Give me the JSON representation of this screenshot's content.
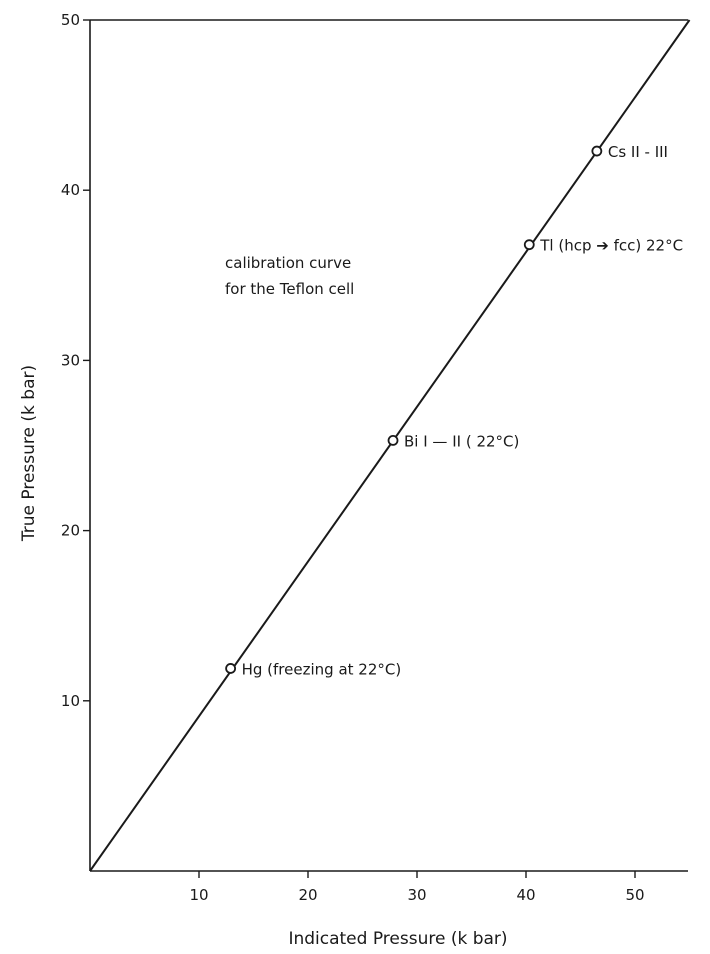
{
  "chart_data": {
    "type": "line",
    "xlabel": "Indicated Pressure (k bar)",
    "ylabel": "True Pressure (k bar)",
    "xlim": [
      0,
      55
    ],
    "ylim": [
      0,
      50
    ],
    "x_ticks": [
      10,
      20,
      30,
      40,
      50
    ],
    "y_ticks": [
      10,
      20,
      30,
      40,
      50
    ],
    "grid": false,
    "annotation": [
      "calibration curve",
      "for the Teflon cell"
    ],
    "series": [
      {
        "x": [
          0,
          55
        ],
        "y": [
          0,
          50
        ]
      }
    ],
    "points": [
      {
        "x": 12.9,
        "y": 11.9,
        "label": "Hg (freezing at 22°C)"
      },
      {
        "x": 27.8,
        "y": 25.3,
        "label": "Bi I — II ( 22°C)"
      },
      {
        "x": 40.3,
        "y": 36.8,
        "label": "Tl (hcp ➔ fcc) 22°C"
      },
      {
        "x": 46.5,
        "y": 42.3,
        "label": "Cs II - III"
      }
    ]
  }
}
